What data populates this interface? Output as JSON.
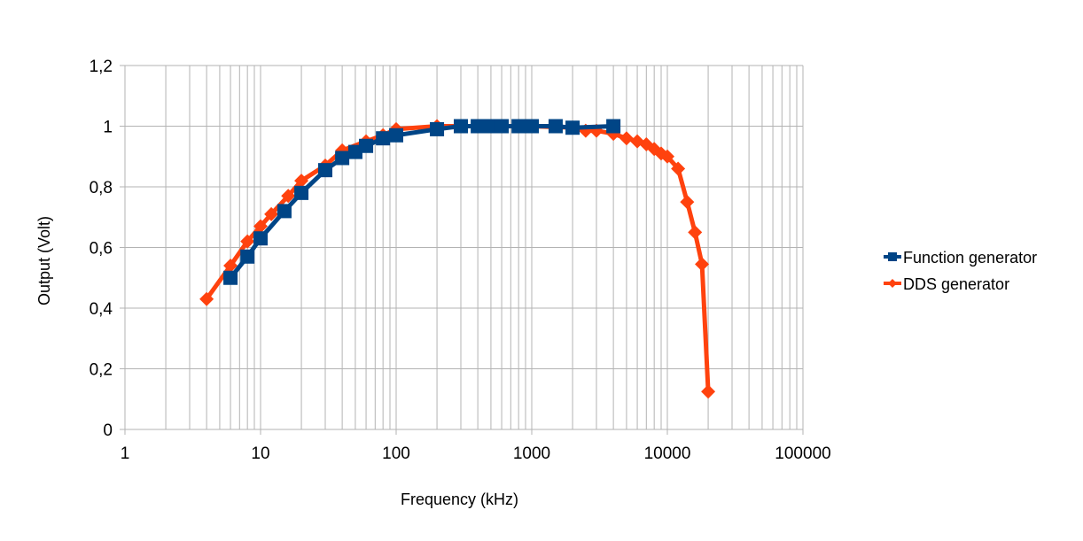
{
  "chart_data": {
    "type": "scatter",
    "title": "",
    "xlabel": "Frequency (kHz)",
    "ylabel": "Output (Volt)",
    "x_scale": "log",
    "xlim": [
      1,
      100000
    ],
    "ylim": [
      0,
      1.2
    ],
    "x_ticks": [
      {
        "value": 1,
        "label": "1"
      },
      {
        "value": 10,
        "label": "10"
      },
      {
        "value": 100,
        "label": "100"
      },
      {
        "value": 1000,
        "label": "1000"
      },
      {
        "value": 10000,
        "label": "10000"
      },
      {
        "value": 100000,
        "label": "100000"
      }
    ],
    "y_ticks": [
      {
        "value": 0,
        "label": "0"
      },
      {
        "value": 0.2,
        "label": "0,2"
      },
      {
        "value": 0.4,
        "label": "0,4"
      },
      {
        "value": 0.6,
        "label": "0,6"
      },
      {
        "value": 0.8,
        "label": "0,8"
      },
      {
        "value": 1.0,
        "label": "1"
      },
      {
        "value": 1.2,
        "label": "1,2"
      }
    ],
    "grid": true,
    "legend_position": "right",
    "series": [
      {
        "name": "DDS generator",
        "color": "#ff420e",
        "marker": "diamond",
        "points": [
          [
            4,
            0.43
          ],
          [
            6,
            0.54
          ],
          [
            8,
            0.62
          ],
          [
            10,
            0.67
          ],
          [
            12,
            0.71
          ],
          [
            16,
            0.77
          ],
          [
            20,
            0.82
          ],
          [
            30,
            0.87
          ],
          [
            40,
            0.92
          ],
          [
            60,
            0.95
          ],
          [
            80,
            0.97
          ],
          [
            100,
            0.99
          ],
          [
            200,
            1.0
          ],
          [
            300,
            1.0
          ],
          [
            500,
            1.0
          ],
          [
            1000,
            1.0
          ],
          [
            2000,
            0.995
          ],
          [
            2500,
            0.985
          ],
          [
            3000,
            0.985
          ],
          [
            4000,
            0.975
          ],
          [
            5000,
            0.96
          ],
          [
            6000,
            0.95
          ],
          [
            7000,
            0.94
          ],
          [
            8000,
            0.925
          ],
          [
            9000,
            0.91
          ],
          [
            10000,
            0.9
          ],
          [
            12000,
            0.86
          ],
          [
            14000,
            0.75
          ],
          [
            16000,
            0.65
          ],
          [
            18000,
            0.545
          ],
          [
            20000,
            0.125
          ]
        ]
      },
      {
        "name": "Function generator",
        "color": "#004586",
        "marker": "square",
        "points": [
          [
            6,
            0.5
          ],
          [
            8,
            0.57
          ],
          [
            10,
            0.63
          ],
          [
            15,
            0.72
          ],
          [
            20,
            0.78
          ],
          [
            30,
            0.855
          ],
          [
            40,
            0.895
          ],
          [
            50,
            0.915
          ],
          [
            60,
            0.935
          ],
          [
            80,
            0.96
          ],
          [
            100,
            0.97
          ],
          [
            200,
            0.99
          ],
          [
            300,
            1.0
          ],
          [
            400,
            1.0
          ],
          [
            500,
            1.0
          ],
          [
            600,
            1.0
          ],
          [
            800,
            1.0
          ],
          [
            1000,
            1.0
          ],
          [
            1500,
            1.0
          ],
          [
            2000,
            0.995
          ],
          [
            4000,
            1.0
          ]
        ]
      }
    ],
    "legend_order": [
      "Function generator",
      "DDS generator"
    ]
  }
}
